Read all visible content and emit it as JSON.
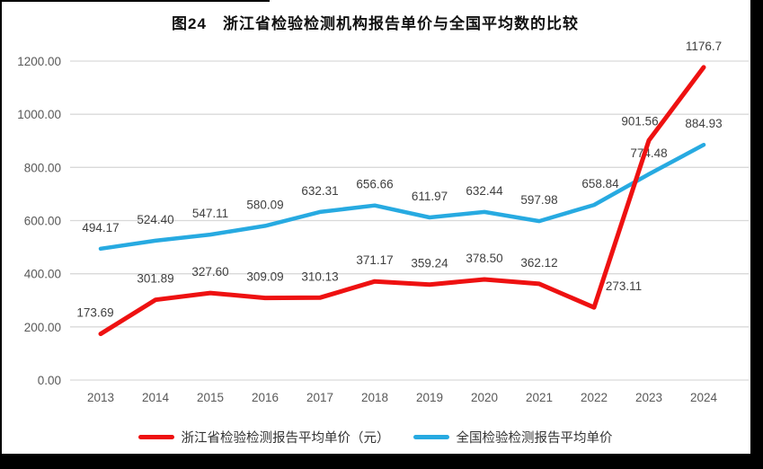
{
  "title": "图24　浙江省检验检测机构报告单价与全国平均数的比较",
  "legend": {
    "items": [
      {
        "label": "浙江省检验检测报告平均单价（元）",
        "color": "#ee1111"
      },
      {
        "label": "全国检验检测报告平均单价",
        "color": "#27aae1"
      }
    ]
  },
  "chart_data": {
    "type": "line",
    "title": "图24　浙江省检验检测机构报告单价与全国平均数的比较",
    "categories": [
      "2013",
      "2014",
      "2015",
      "2016",
      "2017",
      "2018",
      "2019",
      "2020",
      "2021",
      "2022",
      "2023",
      "2024"
    ],
    "series": [
      {
        "name": "浙江省检验检测报告平均单价（元）",
        "color": "#ee1111",
        "line_width": 5,
        "values": [
          173.69,
          301.89,
          327.6,
          309.09,
          310.13,
          371.17,
          359.24,
          378.5,
          362.12,
          273.11,
          901.56,
          1176.7
        ],
        "labels": [
          "173.69",
          "301.89",
          "327.60",
          "309.09",
          "310.13",
          "371.17",
          "359.24",
          "378.50",
          "362.12",
          "273.11",
          "901.56",
          "1176.7"
        ]
      },
      {
        "name": "全国检验检测报告平均单价",
        "color": "#27aae1",
        "line_width": 4.5,
        "values": [
          494.17,
          524.4,
          547.11,
          580.09,
          632.31,
          656.66,
          611.97,
          632.44,
          597.98,
          658.84,
          774.48,
          884.93
        ],
        "labels": [
          "494.17",
          "524.40",
          "547.11",
          "580.09",
          "632.31",
          "656.66",
          "611.97",
          "632.44",
          "597.98",
          "658.84",
          "774.48",
          "884.93"
        ]
      }
    ],
    "xlabel": "",
    "ylabel": "",
    "ylim": [
      0,
      1200
    ],
    "ytick_values": [
      0,
      200,
      400,
      600,
      800,
      1000,
      1200
    ],
    "yticks": [
      "0.00",
      "200.00",
      "400.00",
      "600.00",
      "800.00",
      "1000.00",
      "1200.00"
    ],
    "grid": true,
    "legend_position": "bottom",
    "data_labels": true,
    "label_offsets": {
      "0": {
        "0": [
          -6,
          0
        ],
        "9": [
          33,
          0
        ],
        "10": [
          -10,
          2
        ]
      },
      "1": {
        "9": [
          7,
          0
        ]
      }
    }
  }
}
